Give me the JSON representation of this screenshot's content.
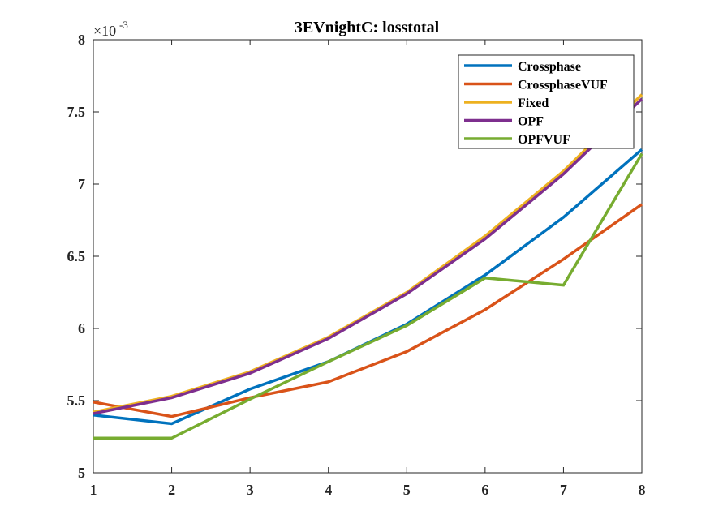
{
  "chart_data": {
    "type": "line",
    "title": "3EVnightC: losstotal",
    "xlabel": "",
    "ylabel": "",
    "y_exponent_base": "×10",
    "y_exponent_power": "-3",
    "x": [
      1,
      2,
      3,
      4,
      5,
      6,
      7,
      8
    ],
    "xlim": [
      1,
      8
    ],
    "ylim": [
      5,
      8
    ],
    "xticks": [
      "1",
      "2",
      "3",
      "4",
      "5",
      "6",
      "7",
      "8"
    ],
    "yticks": [
      "5",
      "5.5",
      "6",
      "6.5",
      "7",
      "7.5",
      "8"
    ],
    "ytick_values": [
      5,
      5.5,
      6,
      6.5,
      7,
      7.5,
      8
    ],
    "grid": false,
    "legend_position": "top-right",
    "series": [
      {
        "name": "Crossphase",
        "color": "#0072BD",
        "values": [
          5.4,
          5.34,
          5.58,
          5.77,
          6.03,
          6.37,
          6.77,
          7.24
        ]
      },
      {
        "name": "CrossphaseVUF",
        "color": "#D95319",
        "values": [
          5.49,
          5.39,
          5.52,
          5.63,
          5.84,
          6.13,
          6.48,
          6.86
        ]
      },
      {
        "name": "Fixed",
        "color": "#EDB120",
        "values": [
          5.42,
          5.53,
          5.7,
          5.94,
          6.25,
          6.64,
          7.09,
          7.62
        ]
      },
      {
        "name": "OPF",
        "color": "#7E2F8E",
        "values": [
          5.41,
          5.52,
          5.69,
          5.93,
          6.24,
          6.62,
          7.07,
          7.59
        ]
      },
      {
        "name": "OPFVUF",
        "color": "#77AC30",
        "values": [
          5.24,
          5.24,
          5.51,
          5.77,
          6.02,
          6.35,
          6.3,
          7.21
        ]
      }
    ]
  }
}
